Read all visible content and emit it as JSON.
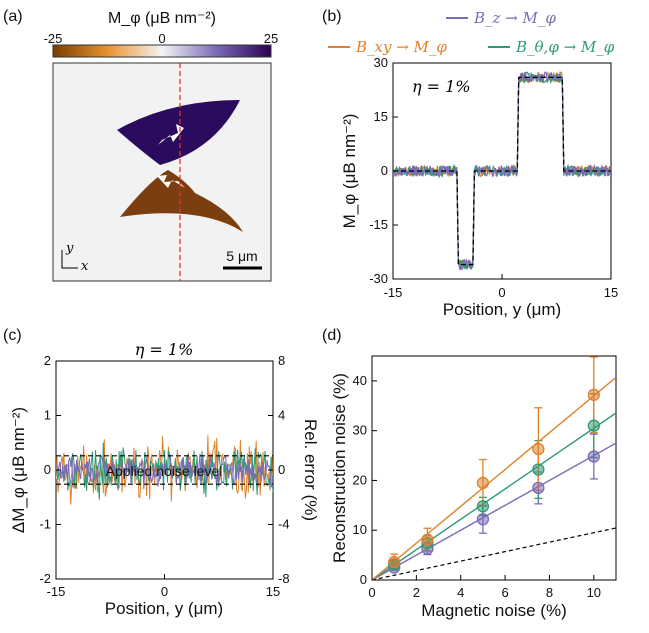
{
  "panel_labels": [
    "(a)",
    "(b)",
    "(c)",
    "(d)"
  ],
  "colors": {
    "bz": "#7b6bb6",
    "bxy": "#e0812b",
    "btp": "#2e9a76",
    "guide": "#000000",
    "domain_pos": "#2b0b5e",
    "domain_neg": "#7a3e10",
    "cut_line": "#e0312c",
    "map_bg": "#f2f2f2"
  },
  "panel_a": {
    "colorbar_title": "M_φ (μB nm⁻²)",
    "colorbar_ticks": [
      "-25",
      "0",
      "25"
    ],
    "scalebar_label": "5 μm",
    "axis_y": "y",
    "axis_x": "x"
  },
  "chart_data": [
    {
      "type": "line",
      "panel": "(b)",
      "legend": [
        "B_z → M_φ",
        "B_xy → M_φ",
        "B_θ,φ → M_φ"
      ],
      "annotation": "η = 1%",
      "xlabel": "Position, y (μm)",
      "ylabel": "M_φ (μB nm⁻²)",
      "xlim": [
        -15,
        15
      ],
      "ylim": [
        -30,
        30
      ],
      "xticks": [
        "-15",
        "0",
        "15"
      ],
      "yticks": [
        "-30",
        "-15",
        "0",
        "15",
        "30"
      ],
      "profile": {
        "x": [
          -15,
          -6.2,
          -6.0,
          -4.0,
          -3.8,
          2.1,
          2.3,
          8.3,
          8.5,
          15
        ],
        "y": [
          0,
          0,
          -26,
          -26,
          0,
          0,
          26,
          26,
          0,
          0
        ]
      },
      "noise_amplitude": 1.5
    },
    {
      "type": "line",
      "panel": "(c)",
      "title": "η = 1%",
      "annotation": "Applied noise level",
      "xlabel": "Position, y (μm)",
      "ylabel": "ΔM_φ (μB nm⁻²)",
      "ylabel_right": "Rel. error (%)",
      "xlim": [
        -15,
        15
      ],
      "ylim": [
        -2,
        2
      ],
      "ylim_right": [
        -8,
        8
      ],
      "xticks": [
        "-15",
        "0",
        "15"
      ],
      "yticks": [
        "-2",
        "-1",
        "0",
        "1",
        "2"
      ],
      "yticks_right": [
        "-8",
        "-4",
        "0",
        "4",
        "8"
      ],
      "noise_level": 0.26,
      "series_amplitude": {
        "Bxy": 0.85,
        "Btp": 0.6,
        "Bz": 0.4
      }
    },
    {
      "type": "scatter",
      "panel": "(d)",
      "xlabel": "Magnetic noise (%)",
      "ylabel": "Reconstruction noise (%)",
      "xlim": [
        0,
        11
      ],
      "ylim": [
        0,
        45
      ],
      "xticks": [
        "0",
        "2",
        "4",
        "6",
        "8",
        "10"
      ],
      "yticks": [
        "0",
        "10",
        "20",
        "30",
        "40"
      ],
      "x": [
        1,
        2.5,
        5,
        7.5,
        10
      ],
      "series": [
        {
          "values": [
            2.5,
            6.3,
            12.2,
            18.5,
            24.8
          ],
          "err": [
            0.6,
            1.2,
            2.8,
            3.2,
            4.5
          ],
          "slope": 2.5
        },
        {
          "values": [
            3.1,
            7.4,
            14.8,
            22.2,
            31.0
          ],
          "err": [
            0.8,
            1.5,
            1.8,
            5.8,
            6.4
          ],
          "slope": 3.05
        },
        {
          "values": [
            3.6,
            8.1,
            19.5,
            26.3,
            37.2
          ],
          "err": [
            1.6,
            2.3,
            4.7,
            8.3,
            7.6
          ],
          "slope": 3.7
        }
      ],
      "reference_slope": 0.95
    }
  ]
}
